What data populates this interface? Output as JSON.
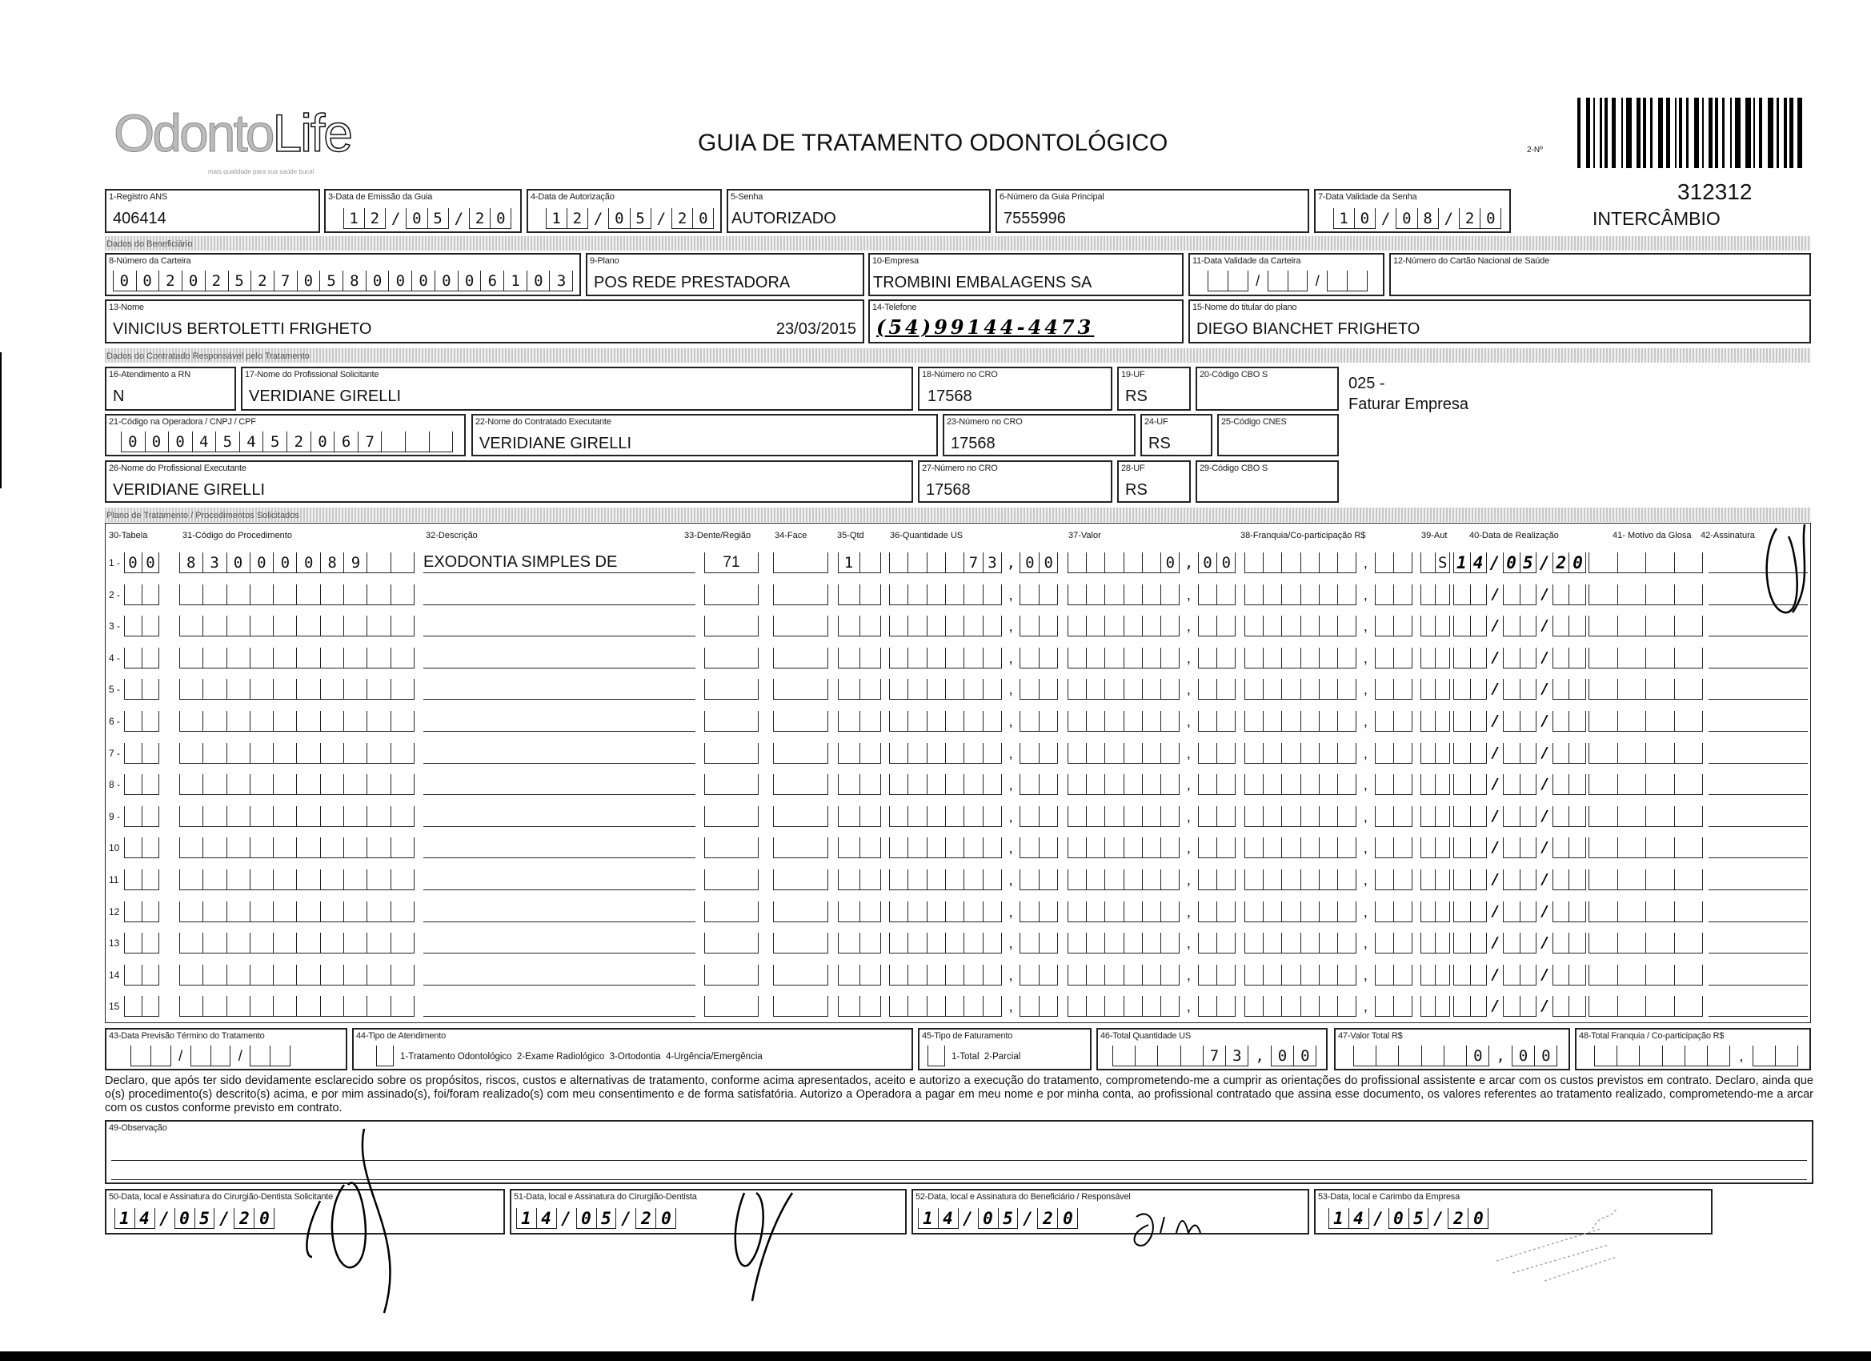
{
  "logo_text": "OdontoLife",
  "logo_tagline": "mais qualidade para sua saúde bucal",
  "title": "GUIA DE TRATAMENTO ODONTOLÓGICO",
  "guide_number_label": "2-Nº",
  "guide_code": "312312",
  "guide_type": "INTERCÂMBIO",
  "header": {
    "f1_label": "1-Registro ANS",
    "f1_value": "406414",
    "f3_label": "3-Data de Emissão da Guia",
    "f3_value": "12/05/20",
    "f4_label": "4-Data de Autorização",
    "f4_value": "12/05/20",
    "f5_label": "5-Senha",
    "f5_value": "AUTORIZADO",
    "f6_label": "6-Número da Guia Principal",
    "f6_value": "7555996",
    "f7_label": "7-Data Validade da Senha",
    "f7_value": "10/08/20"
  },
  "beneficiario": {
    "section_title": "Dados do Beneficiário",
    "f8_label": "8-Número da Carteira",
    "f8_value": "00202527058000006103",
    "f9_label": "9-Plano",
    "f9_value": "POS REDE PRESTADORA",
    "f10_label": "10-Empresa",
    "f10_value": "TROMBINI EMBALAGENS SA",
    "f11_label": "11-Data Validade da Carteira",
    "f11_value": "",
    "f12_label": "12-Número do Cartão Nacional de Saúde",
    "f12_value": "",
    "f13_label": "13-Nome",
    "f13_value": "VINICIUS BERTOLETTI FRIGHETO",
    "f13_date": "23/03/2015",
    "f14_label": "14-Telefone",
    "f14_value": "(54)99144-4473",
    "f15_label": "15-Nome do titular do plano",
    "f15_value": "DIEGO BIANCHET FRIGHETO"
  },
  "contratado": {
    "section_title": "Dados do Contratado Responsável pelo Tratamento",
    "f16_label": "16-Atendimento a RN",
    "f16_value": "N",
    "f17_label": "17-Nome do Profissional Solicitante",
    "f17_value": "VERIDIANE GIRELLI",
    "f18_label": "18-Número no CRO",
    "f18_value": "17568",
    "f19_label": "19-UF",
    "f19_value": "RS",
    "f20_label": "20-Código CBO S",
    "f20_value": "",
    "note_code": "025 -",
    "note_text": "Faturar Empresa",
    "f21_label": "21-Código na Operadora / CNPJ / CPF",
    "f21_value": "00045452067   ",
    "f22_label": "22-Nome do Contratado Executante",
    "f22_value": "VERIDIANE GIRELLI",
    "f23_label": "23-Número no CRO",
    "f23_value": "17568",
    "f24_label": "24-UF",
    "f24_value": "RS",
    "f25_label": "25-Código CNES",
    "f25_value": "",
    "f26_label": "26-Nome do Profissional Executante",
    "f26_value": "VERIDIANE GIRELLI",
    "f27_label": "27-Número no CRO",
    "f27_value": "17568",
    "f28_label": "28-UF",
    "f28_value": "RS",
    "f29_label": "29-Código CBO S",
    "f29_value": ""
  },
  "plano": {
    "section_title": "Plano de Tratamento / Procedimentos Solicitados",
    "columns": [
      "30-Tabela",
      "31-Código do Procedimento",
      "32-Descrição",
      "33-Dente/Região",
      "34-Face",
      "35-Qtd",
      "36-Quantidade US",
      "37-Valor",
      "38-Franquia/Co-participação R$",
      "39-Aut",
      "40-Data de Realização",
      "41- Motivo da Glosa",
      "42-Assinatura"
    ],
    "rows": [
      {
        "num": "1 -",
        "tabela": "00",
        "codigo": "83000089  ",
        "descricao": "EXODONTIA SIMPLES DE",
        "dente": "71",
        "face": "",
        "qtd": "1 ",
        "qtdus": "    73,00",
        "valor": "     0,00",
        "franquia": "",
        "aut": " S",
        "data": "14/05/20",
        "glosa": ""
      },
      {
        "num": "2 -"
      },
      {
        "num": "3 -"
      },
      {
        "num": "4 -"
      },
      {
        "num": "5 -"
      },
      {
        "num": "6 -"
      },
      {
        "num": "7 -"
      },
      {
        "num": "8 -"
      },
      {
        "num": "9 -"
      },
      {
        "num": "10"
      },
      {
        "num": "11"
      },
      {
        "num": "12"
      },
      {
        "num": "13"
      },
      {
        "num": "14"
      },
      {
        "num": "15"
      }
    ]
  },
  "totais": {
    "f43_label": "43-Data Previsão Término do Tratamento",
    "f43_value": "",
    "f44_label": "44-Tipo de Atendimento",
    "f44_options": "1-Tratamento Odontológico  2-Exame Radiológico  3-Ortodontia  4-Urgência/Emergência",
    "f45_label": "45-Tipo de Faturamento",
    "f45_options": "1-Total  2-Parcial",
    "f46_label": "46-Total Quantidade US",
    "f46_value": "    73,00",
    "f47_label": "47-Valor Total R$",
    "f47_value": "     0,00",
    "f48_label": "48-Total Franquia / Co-participação R$",
    "f48_value": ""
  },
  "declaration": "Declaro, que após ter sido devidamente esclarecido sobre os propósitos, riscos, custos e alternativas de tratamento, conforme acima apresentados, aceito e autorizo a execução do tratamento, comprometendo-me a cumprir as orientações do profissional assistente e arcar com os custos previstos em contrato. Declaro, ainda que o(s) procedimento(s) descrito(s) acima, e por mim assinado(s), foi/foram realizado(s) com meu consentimento e de forma satisfatória. Autorizo a Operadora a pagar em meu nome e por minha conta, ao profissional contratado que assina esse documento, os valores referentes ao tratamento realizado, comprometendo-me a arcar com os custos conforme previsto em contrato.",
  "observacao_label": "49-Observação",
  "assinaturas": {
    "f50_label": "50-Data, local e Assinatura do Cirurgião-Dentista Solicitante",
    "f50_date": "14/05/20",
    "f51_label": "51-Data, local e Assinatura do Cirurgião-Dentista",
    "f51_date": "14/05/20",
    "f52_label": "52-Data, local e Assinatura do Beneficiário / Responsável",
    "f52_date": "14/05/20",
    "f53_label": "53-Data, local e Carimbo da Empresa",
    "f53_date": "14/05/20"
  }
}
